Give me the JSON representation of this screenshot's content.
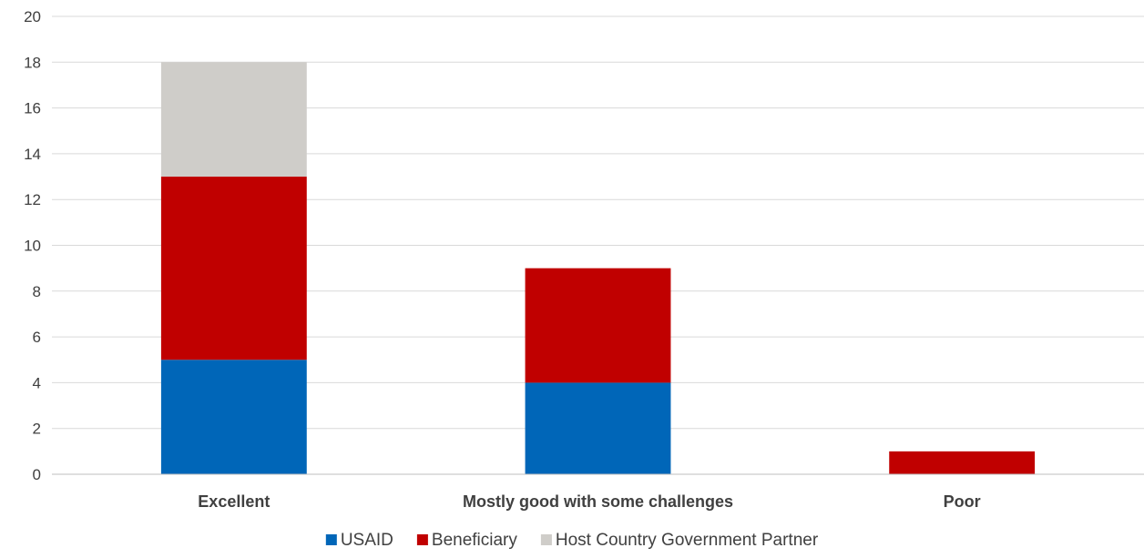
{
  "chart_data": {
    "type": "bar",
    "stacked": true,
    "categories": [
      "Excellent",
      "Mostly good with some challenges",
      "Poor"
    ],
    "series": [
      {
        "name": "USAID",
        "values": [
          5,
          4,
          0
        ],
        "color": "#0066b8"
      },
      {
        "name": "Beneficiary",
        "values": [
          8,
          5,
          1
        ],
        "color": "#c00000"
      },
      {
        "name": "Host Country Government Partner",
        "values": [
          5,
          0,
          0
        ],
        "color": "#cfcdc9"
      }
    ],
    "yticks": [
      0,
      2,
      4,
      6,
      8,
      10,
      12,
      14,
      16,
      18,
      20
    ],
    "ylim": [
      0,
      20
    ],
    "grid": true,
    "legend_position": "bottom"
  }
}
